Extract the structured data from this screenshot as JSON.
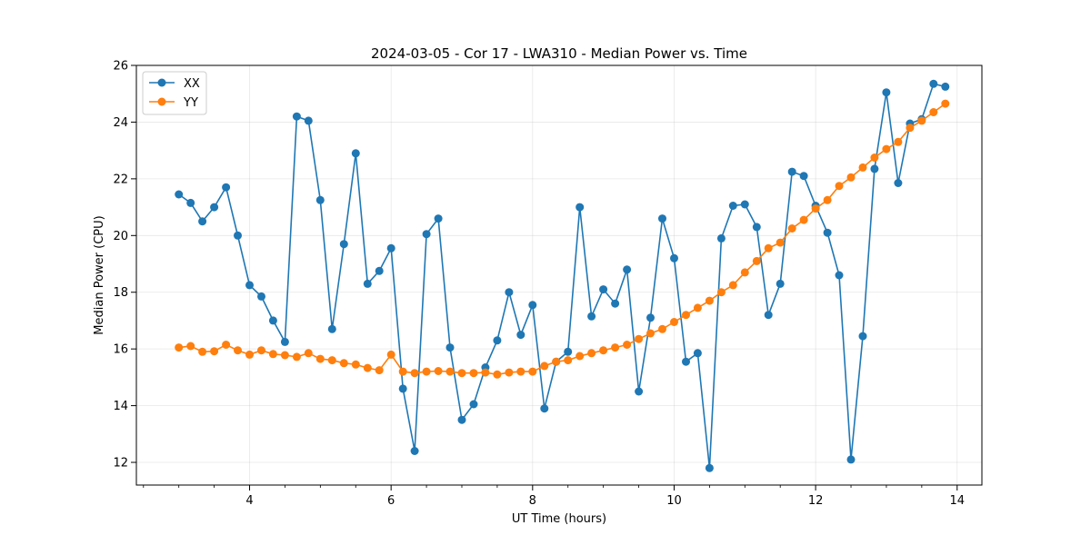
{
  "chart_data": {
    "type": "line",
    "title": "2024-03-05 - Cor 17 - LWA310 - Median Power vs. Time",
    "xlabel": "UT Time (hours)",
    "ylabel": "Median Power (CPU)",
    "xlim": [
      2.4,
      14.35
    ],
    "ylim": [
      11.2,
      26.0
    ],
    "xticks": [
      4,
      6,
      8,
      10,
      12,
      14
    ],
    "yticks": [
      12,
      14,
      16,
      18,
      20,
      22,
      24,
      26
    ],
    "grid": true,
    "legend_position": "top-left",
    "series": [
      {
        "name": "XX",
        "color": "#1f77b4",
        "x": [
          3.0,
          3.167,
          3.333,
          3.5,
          3.667,
          3.833,
          4.0,
          4.167,
          4.333,
          4.5,
          4.667,
          4.833,
          5.0,
          5.167,
          5.333,
          5.5,
          5.667,
          5.833,
          6.0,
          6.167,
          6.333,
          6.5,
          6.667,
          6.833,
          7.0,
          7.167,
          7.333,
          7.5,
          7.667,
          7.833,
          8.0,
          8.167,
          8.333,
          8.5,
          8.667,
          8.833,
          9.0,
          9.167,
          9.333,
          9.5,
          9.667,
          9.833,
          10.0,
          10.167,
          10.333,
          10.5,
          10.667,
          10.833,
          11.0,
          11.167,
          11.333,
          11.5,
          11.667,
          11.833,
          12.0,
          12.167,
          12.333,
          12.5,
          12.667,
          12.833,
          13.0,
          13.167,
          13.333,
          13.5,
          13.667,
          13.833
        ],
        "y": [
          21.45,
          21.15,
          20.5,
          21.0,
          21.7,
          20.0,
          18.25,
          17.85,
          17.0,
          16.25,
          24.2,
          24.05,
          21.25,
          16.7,
          19.7,
          22.9,
          18.3,
          18.75,
          19.55,
          14.6,
          12.4,
          20.05,
          20.6,
          16.05,
          13.5,
          14.05,
          15.35,
          16.3,
          18.0,
          16.5,
          17.55,
          13.9,
          15.55,
          15.9,
          21.0,
          17.15,
          18.1,
          17.6,
          18.8,
          14.5,
          17.1,
          20.6,
          19.2,
          15.55,
          15.85,
          11.8,
          19.9,
          21.05,
          21.1,
          20.3,
          17.2,
          18.3,
          22.25,
          22.1,
          21.05,
          20.1,
          18.6,
          12.1,
          16.45,
          22.35,
          25.05,
          21.85,
          23.95,
          24.1,
          25.35,
          25.25
        ]
      },
      {
        "name": "YY",
        "color": "#ff7f0e",
        "x": [
          3.0,
          3.167,
          3.333,
          3.5,
          3.667,
          3.833,
          4.0,
          4.167,
          4.333,
          4.5,
          4.667,
          4.833,
          5.0,
          5.167,
          5.333,
          5.5,
          5.667,
          5.833,
          6.0,
          6.167,
          6.333,
          6.5,
          6.667,
          6.833,
          7.0,
          7.167,
          7.333,
          7.5,
          7.667,
          7.833,
          8.0,
          8.167,
          8.333,
          8.5,
          8.667,
          8.833,
          9.0,
          9.167,
          9.333,
          9.5,
          9.667,
          9.833,
          10.0,
          10.167,
          10.333,
          10.5,
          10.667,
          10.833,
          11.0,
          11.167,
          11.333,
          11.5,
          11.667,
          11.833,
          12.0,
          12.167,
          12.333,
          12.5,
          12.667,
          12.833,
          13.0,
          13.167,
          13.333,
          13.5,
          13.667,
          13.833
        ],
        "y": [
          16.05,
          16.1,
          15.9,
          15.92,
          16.15,
          15.95,
          15.8,
          15.95,
          15.82,
          15.78,
          15.72,
          15.85,
          15.65,
          15.6,
          15.5,
          15.45,
          15.33,
          15.25,
          15.8,
          15.2,
          15.15,
          15.2,
          15.22,
          15.2,
          15.15,
          15.15,
          15.17,
          15.1,
          15.17,
          15.2,
          15.2,
          15.4,
          15.55,
          15.6,
          15.75,
          15.85,
          15.95,
          16.05,
          16.15,
          16.35,
          16.55,
          16.7,
          16.95,
          17.2,
          17.45,
          17.7,
          18.0,
          18.25,
          18.7,
          19.1,
          19.55,
          19.75,
          20.25,
          20.55,
          20.95,
          21.25,
          21.75,
          22.05,
          22.4,
          22.75,
          23.05,
          23.3,
          23.8,
          24.05,
          24.35,
          24.65
        ]
      }
    ]
  }
}
